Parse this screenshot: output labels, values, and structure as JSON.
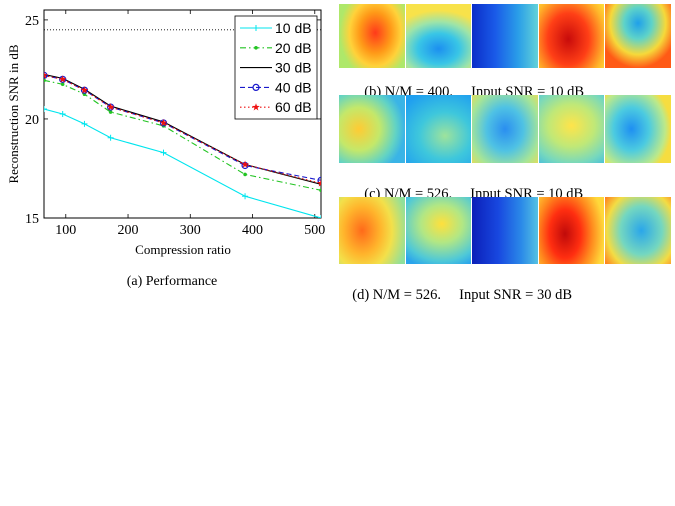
{
  "chart_data": {
    "type": "line",
    "ylabel": "Reconstruction SNR in dB",
    "xlabel": "Compression ratio",
    "caption": "(a) Performance",
    "xlim": [
      65,
      510
    ],
    "ylim": [
      15,
      25.5
    ],
    "xticks": [
      "100",
      "200",
      "300",
      "400",
      "500"
    ],
    "xtick_values": [
      100,
      200,
      300,
      400,
      500
    ],
    "yticks": [
      "15",
      "20",
      "25"
    ],
    "ytick_values": [
      15,
      20,
      25
    ],
    "reference_line": 24.5,
    "legend_position": "top-right",
    "x": [
      65,
      95,
      130,
      172,
      257,
      388,
      510
    ],
    "series": [
      {
        "name": "10 dB",
        "color": "#00e5ee",
        "dash": "",
        "marker": "plus",
        "values": [
          20.5,
          20.25,
          19.75,
          19.05,
          18.3,
          16.1,
          15.0
        ]
      },
      {
        "name": "20 dB",
        "color": "#22c422",
        "dash": "6,3,1.5,3",
        "marker": "dot",
        "values": [
          21.95,
          21.75,
          21.25,
          20.35,
          19.65,
          17.2,
          16.4
        ]
      },
      {
        "name": "30 dB",
        "color": "#000000",
        "dash": "",
        "marker": "none",
        "values": [
          22.25,
          22.05,
          21.5,
          20.65,
          19.85,
          17.7,
          16.7
        ]
      },
      {
        "name": "40 dB",
        "color": "#1a1acc",
        "dash": "5,3",
        "marker": "circle",
        "values": [
          22.2,
          22.0,
          21.45,
          20.6,
          19.8,
          17.65,
          16.9
        ]
      },
      {
        "name": "60 dB",
        "color": "#ee1111",
        "dash": "1.5,2.5",
        "marker": "star",
        "values": [
          22.2,
          22.0,
          21.45,
          20.6,
          19.8,
          17.7,
          16.75
        ]
      }
    ]
  },
  "panels": {
    "b_label": "(b) N/M = 400.",
    "b_snr": "Input SNR = 10 dB",
    "c_label": "(c) N/M = 526.",
    "c_snr": "Input SNR = 10 dB",
    "d_label": "(d) N/M = 526.",
    "d_snr": "Input SNR = 30 dB"
  }
}
